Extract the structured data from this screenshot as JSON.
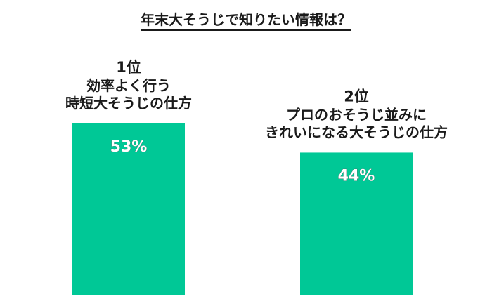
{
  "title": "年末大そうじで知りたい情報は？",
  "colors": {
    "bar": "#00c896",
    "text": "#1a1a1a",
    "label": "#ffffff"
  },
  "chart_data": {
    "type": "bar",
    "title": "年末大そうじで知りたい情報は？",
    "categories": [
      {
        "rank": "1位",
        "lines": [
          "効率よく行う",
          "時短大そうじの仕方"
        ]
      },
      {
        "rank": "2位",
        "lines": [
          "プロのおそうじ並みに",
          "きれいになる大そうじの仕方"
        ]
      }
    ],
    "values": [
      53,
      44
    ],
    "data_labels": [
      "53%",
      "44%"
    ],
    "unit": "%",
    "ylim": [
      0,
      60
    ],
    "grid": false,
    "legend": "none"
  }
}
